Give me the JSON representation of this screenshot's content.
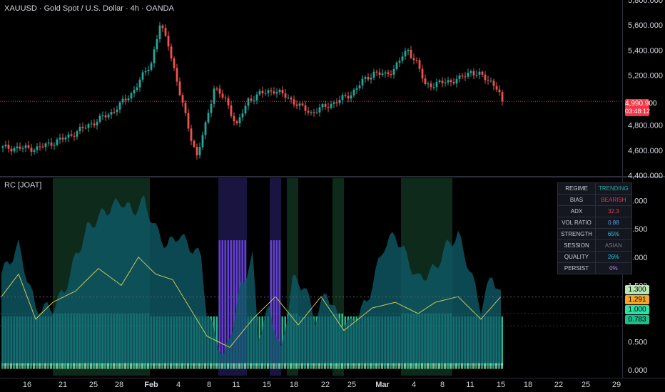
{
  "header": {
    "symbol_title": "XAUUSD · Gold Spot / U.S. Dollar · 4h · OANDA",
    "indicator_title": "RC [JOAT]"
  },
  "price_axis": {
    "ticks": [
      "5,800.000",
      "5,600.000",
      "5,400.000",
      "5,200.000",
      "4,800.000",
      "4,600.000",
      "4,400.000"
    ],
    "last_price": "4,990.900",
    "countdown": "03:48:12",
    "last_price_color": "#f23645"
  },
  "indicator_axis": {
    "ticks": [
      "3.000",
      "2.500",
      "2.000",
      "1.500",
      "0.500",
      "0.000"
    ],
    "tags": [
      {
        "text": "1.300",
        "bg": "#b6e8b0",
        "fg": "#000000"
      },
      {
        "text": "1.291",
        "bg": "#f5a623",
        "fg": "#000000"
      },
      {
        "text": "1.000",
        "bg": "#27e3a8",
        "fg": "#000000"
      },
      {
        "text": "0.783",
        "bg": "#1bbf8a",
        "fg": "#000000"
      }
    ]
  },
  "time_axis": {
    "labels": [
      "16",
      "21",
      "25",
      "28",
      "Feb",
      "4",
      "8",
      "11",
      "15",
      "18",
      "22",
      "25",
      "Mar",
      "4",
      "8",
      "11",
      "15",
      "18",
      "22",
      "25",
      "29"
    ],
    "bold": [
      "Feb",
      "Mar"
    ]
  },
  "regime_table": {
    "rows": [
      {
        "key": "REGIME",
        "value": "TRENDING",
        "color": "#26a69a"
      },
      {
        "key": "BIAS",
        "value": "BEARISH",
        "color": "#f23645"
      },
      {
        "key": "ADX",
        "value": "32.3",
        "color": "#f23645"
      },
      {
        "key": "VOL RATIO",
        "value": "0.88",
        "color": "#5b9cf6"
      },
      {
        "key": "STRENGTH",
        "value": "65%",
        "color": "#26c6da"
      },
      {
        "key": "SESSION",
        "value": "ASIAN",
        "color": "#6b7280"
      },
      {
        "key": "QUALITY",
        "value": "26%",
        "color": "#26c6da"
      },
      {
        "key": "PERSIST",
        "value": "0%",
        "color": "#b388ff"
      }
    ]
  },
  "colors": {
    "up_candle": "#26a69a",
    "down_candle": "#ef5350",
    "area_fill": "#0f5a66",
    "column_fill": "#2fd8a6",
    "regime_trend_bg": "#0e2a1a",
    "regime_volatile_bg": "#1a1440",
    "volatile_column": "#7c4dff",
    "yellow_line": "#c9c95a",
    "level_dotted": "#f23645"
  },
  "chart_data": [
    {
      "type": "candlestick",
      "title": "XAUUSD · Gold Spot / U.S. Dollar · 4h · OANDA",
      "ylim": [
        4400,
        5800
      ],
      "x_start": "Jan 13",
      "x_end": "Mar 14",
      "path": [
        [
          0,
          4620
        ],
        [
          12,
          4615
        ],
        [
          22,
          4700
        ],
        [
          30,
          4800
        ],
        [
          38,
          4900
        ],
        [
          45,
          5050
        ],
        [
          52,
          5300
        ],
        [
          55,
          5600
        ],
        [
          58,
          5450
        ],
        [
          62,
          5050
        ],
        [
          66,
          4700
        ],
        [
          68,
          4550
        ],
        [
          71,
          4800
        ],
        [
          74,
          5100
        ],
        [
          78,
          5000
        ],
        [
          82,
          4800
        ],
        [
          86,
          5000
        ],
        [
          90,
          5050
        ],
        [
          95,
          5080
        ],
        [
          100,
          5020
        ],
        [
          104,
          4950
        ],
        [
          108,
          4900
        ],
        [
          113,
          4950
        ],
        [
          118,
          5000
        ],
        [
          122,
          5050
        ],
        [
          126,
          5150
        ],
        [
          130,
          5220
        ],
        [
          134,
          5200
        ],
        [
          137,
          5250
        ],
        [
          140,
          5350
        ],
        [
          142,
          5400
        ],
        [
          145,
          5300
        ],
        [
          148,
          5120
        ],
        [
          152,
          5130
        ],
        [
          156,
          5150
        ],
        [
          160,
          5170
        ],
        [
          164,
          5230
        ],
        [
          167,
          5200
        ],
        [
          171,
          5150
        ],
        [
          173,
          5100
        ],
        [
          175,
          4990.9
        ]
      ],
      "last": 4990.9
    },
    {
      "type": "area",
      "title": "RC [JOAT]",
      "ylim": [
        -0.1,
        3.4
      ],
      "levels": [
        1.3,
        1.291,
        1.0,
        0.783
      ],
      "envelope": [
        [
          0,
          1.7
        ],
        [
          6,
          2.2
        ],
        [
          12,
          1.1
        ],
        [
          18,
          1.1
        ],
        [
          22,
          1.4
        ],
        [
          26,
          2.0
        ],
        [
          30,
          2.5
        ],
        [
          36,
          2.8
        ],
        [
          42,
          3.0
        ],
        [
          46,
          2.8
        ],
        [
          50,
          3.0
        ],
        [
          54,
          2.5
        ],
        [
          58,
          2.2
        ],
        [
          62,
          2.4
        ],
        [
          66,
          2.2
        ],
        [
          70,
          2.0
        ],
        [
          72,
          1.0
        ],
        [
          78,
          0.2
        ],
        [
          81,
          0.8
        ],
        [
          84,
          1.5
        ],
        [
          88,
          2.0
        ],
        [
          90,
          0.6
        ],
        [
          94,
          1.1
        ],
        [
          98,
          0.3
        ],
        [
          102,
          1.6
        ],
        [
          106,
          1.5
        ],
        [
          110,
          0.9
        ],
        [
          114,
          1.4
        ],
        [
          118,
          0.9
        ],
        [
          122,
          0.8
        ],
        [
          128,
          1.2
        ],
        [
          134,
          2.2
        ],
        [
          138,
          2.4
        ],
        [
          142,
          2.0
        ],
        [
          146,
          1.6
        ],
        [
          152,
          1.8
        ],
        [
          156,
          2.2
        ],
        [
          160,
          2.4
        ],
        [
          164,
          1.8
        ],
        [
          168,
          1.1
        ],
        [
          172,
          1.7
        ],
        [
          175,
          1.3
        ]
      ],
      "yellow_line": [
        [
          0,
          1.3
        ],
        [
          6,
          1.7
        ],
        [
          12,
          0.9
        ],
        [
          18,
          1.2
        ],
        [
          26,
          1.4
        ],
        [
          34,
          1.8
        ],
        [
          42,
          1.5
        ],
        [
          48,
          2.0
        ],
        [
          54,
          1.7
        ],
        [
          60,
          1.6
        ],
        [
          66,
          1.1
        ],
        [
          72,
          0.6
        ],
        [
          80,
          0.4
        ],
        [
          88,
          0.9
        ],
        [
          96,
          1.3
        ],
        [
          104,
          0.8
        ],
        [
          112,
          1.3
        ],
        [
          120,
          0.7
        ],
        [
          130,
          1.1
        ],
        [
          138,
          1.2
        ],
        [
          146,
          1.0
        ],
        [
          152,
          1.2
        ],
        [
          160,
          1.3
        ],
        [
          168,
          0.9
        ],
        [
          175,
          1.3
        ]
      ],
      "volatile_ranges": [
        [
          76,
          86
        ],
        [
          94,
          98
        ]
      ],
      "trend_ranges": [
        [
          18,
          52
        ],
        [
          100,
          104
        ],
        [
          116,
          120
        ],
        [
          140,
          158
        ]
      ]
    }
  ]
}
